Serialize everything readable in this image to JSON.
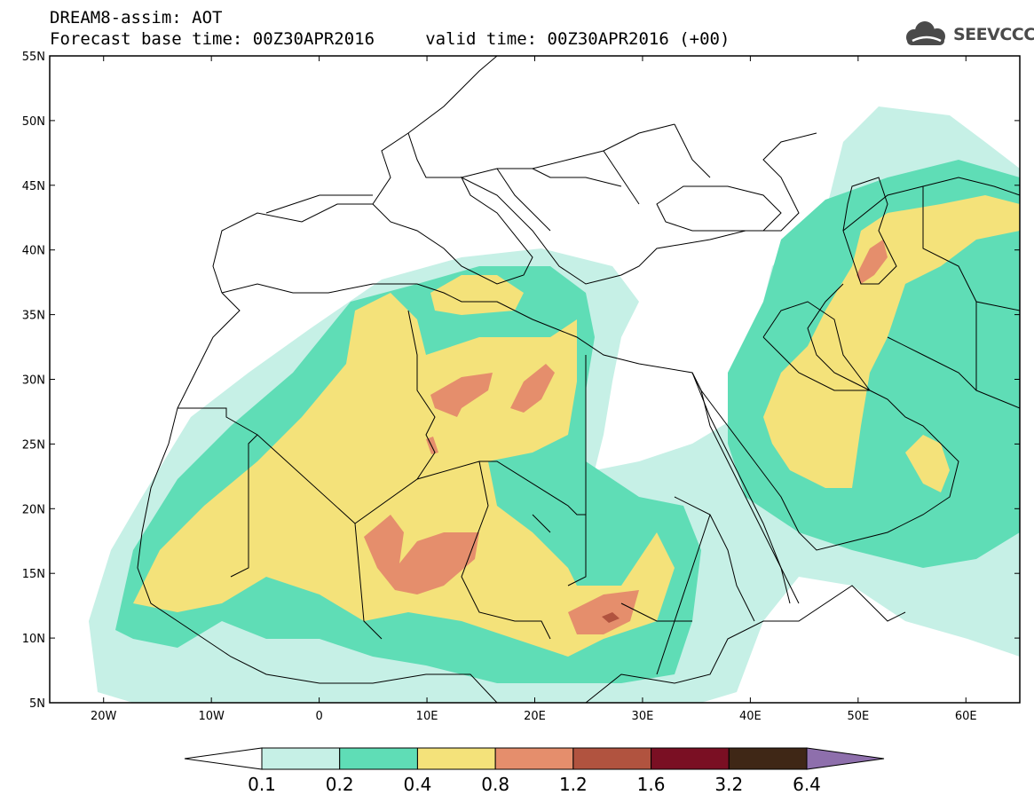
{
  "title": {
    "line1": "DREAM8-assim: AOT",
    "line2": "Forecast base time: 00Z30APR2016     valid time: 00Z30APR2016 (+00)"
  },
  "logo": {
    "text": "SEEVCCC",
    "icon": "cloud-icon"
  },
  "map": {
    "projection": "lat-lon",
    "lon_range": [
      -25,
      65
    ],
    "lat_range": [
      5,
      55
    ],
    "y_ticks": [
      {
        "value": 55,
        "label": "55N"
      },
      {
        "value": 50,
        "label": "50N"
      },
      {
        "value": 45,
        "label": "45N"
      },
      {
        "value": 40,
        "label": "40N"
      },
      {
        "value": 35,
        "label": "35N"
      },
      {
        "value": 30,
        "label": "30N"
      },
      {
        "value": 25,
        "label": "25N"
      },
      {
        "value": 20,
        "label": "20N"
      },
      {
        "value": 15,
        "label": "15N"
      },
      {
        "value": 10,
        "label": "10N"
      },
      {
        "value": 5,
        "label": "5N"
      }
    ],
    "x_ticks": [
      {
        "value": -20,
        "label": "20W"
      },
      {
        "value": -10,
        "label": "10W"
      },
      {
        "value": 0,
        "label": "0"
      },
      {
        "value": 10,
        "label": "10E"
      },
      {
        "value": 20,
        "label": "20E"
      },
      {
        "value": 30,
        "label": "30E"
      },
      {
        "value": 40,
        "label": "40E"
      },
      {
        "value": 50,
        "label": "50E"
      },
      {
        "value": 60,
        "label": "60E"
      }
    ]
  },
  "colorbar": {
    "labels": [
      "0.1",
      "0.2",
      "0.4",
      "0.8",
      "1.2",
      "1.6",
      "3.2",
      "6.4"
    ],
    "colors": [
      "#ffffff",
      "#c6f0e6",
      "#5fddb6",
      "#f4e27a",
      "#e58e6c",
      "#b1533f",
      "#7a0f23",
      "#3f2716",
      "#8e6fac"
    ]
  }
}
